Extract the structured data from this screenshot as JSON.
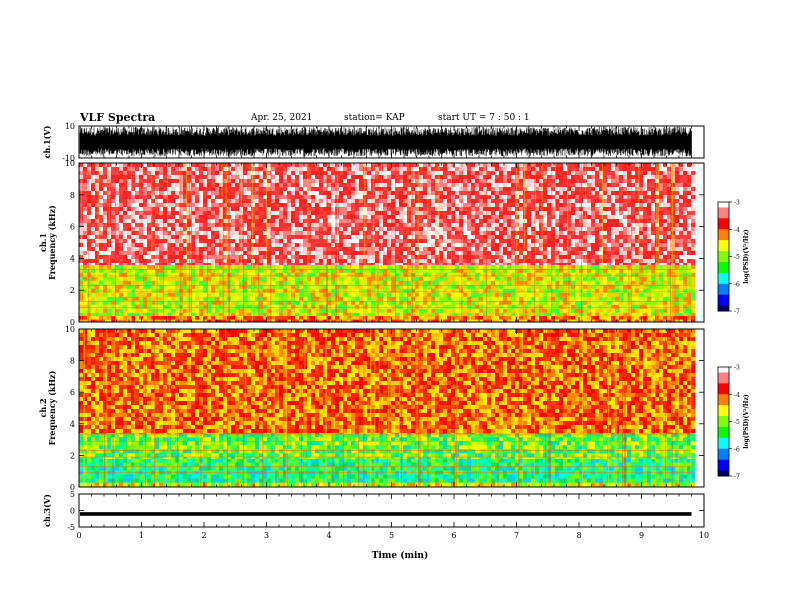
{
  "header": {
    "title": "VLF Spectra",
    "date": "Apr. 25, 2021",
    "station": "station= KAP",
    "start_ut": "start  UT =   7 : 50 : 1"
  },
  "chart_data": [
    {
      "type": "line",
      "name": "ch1-waveform",
      "ylabel": "ch.1(V)",
      "ylim": [
        -10,
        10
      ],
      "yticks": [
        "10",
        "-10"
      ],
      "xlim": [
        0,
        10
      ],
      "description": "dense noisy waveform spanning roughly -10 to 10 V over 0-9.8 min"
    },
    {
      "type": "heatmap",
      "name": "ch1-spectrogram",
      "ylabel": "ch.1\nFrequency (kHz)",
      "ylim": [
        0,
        10
      ],
      "yticks": [
        "0",
        "2",
        "4",
        "6",
        "8",
        "10"
      ],
      "xlim": [
        0,
        10
      ],
      "data_end_min": 9.8,
      "bands_khz": [
        {
          "from": 0.0,
          "to": 0.4,
          "level": "red-yellow"
        },
        {
          "from": 0.4,
          "to": 3.6,
          "level": "yellow-green"
        },
        {
          "from": 3.6,
          "to": 10.0,
          "level": "red-white"
        }
      ],
      "colorbar": {
        "label": "log(PSD)(V²/Hz)",
        "min": -7,
        "max": -3,
        "ticks": [
          "-3",
          "-4",
          "-5",
          "-6",
          "-7"
        ]
      }
    },
    {
      "type": "heatmap",
      "name": "ch2-spectrogram",
      "ylabel": "ch.2\nFrequency (kHz)",
      "ylim": [
        0,
        10
      ],
      "yticks": [
        "0",
        "2",
        "4",
        "6",
        "8",
        "10"
      ],
      "xlim": [
        0,
        10
      ],
      "data_end_min": 9.8,
      "bands_khz": [
        {
          "from": 0.0,
          "to": 0.3,
          "level": "yellow-green"
        },
        {
          "from": 0.3,
          "to": 1.8,
          "level": "green-cyan"
        },
        {
          "from": 1.8,
          "to": 3.4,
          "level": "green-yellow"
        },
        {
          "from": 3.4,
          "to": 10.0,
          "level": "red-yellow"
        }
      ],
      "colorbar": {
        "label": "log(PSD)(V²/Hz)",
        "min": -7,
        "max": -3,
        "ticks": [
          "-3",
          "-4",
          "-5",
          "-6",
          "-7"
        ]
      }
    },
    {
      "type": "line",
      "name": "ch3-waveform",
      "ylabel": "ch.3(V)",
      "ylim": [
        -5,
        5
      ],
      "yticks": [
        "5",
        "0",
        "-5"
      ],
      "xlim": [
        0,
        10
      ],
      "xticks": [
        "0",
        "1",
        "2",
        "3",
        "4",
        "5",
        "6",
        "7",
        "8",
        "9",
        "10"
      ],
      "xlabel": "Time (min)",
      "description": "thick nearly constant trace around -1 V"
    }
  ]
}
